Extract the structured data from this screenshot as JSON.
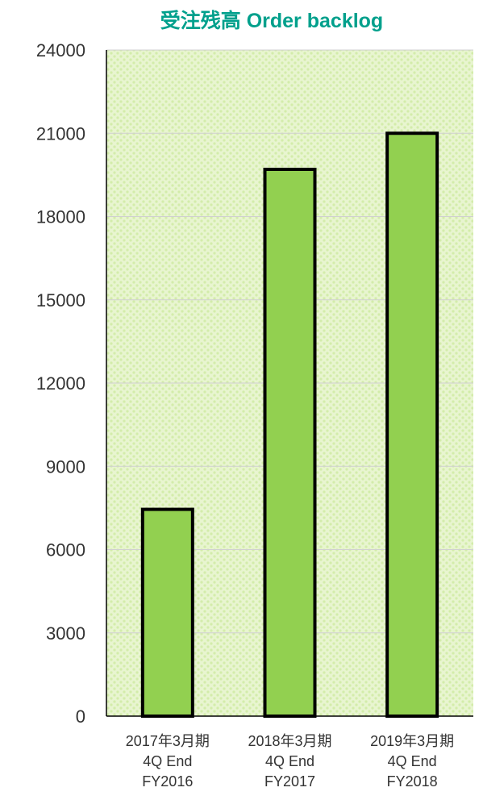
{
  "chart_data": {
    "type": "bar",
    "title": "受注残高  Order backlog",
    "categories": [
      [
        "2017年3月期",
        "4Q End",
        "FY2016"
      ],
      [
        "2018年3月期",
        "4Q End",
        "FY2017"
      ],
      [
        "2019年3月期",
        "4Q End",
        "FY2018"
      ]
    ],
    "values": [
      7450,
      19700,
      21000
    ],
    "ylim": [
      0,
      24000
    ],
    "yticks": [
      "0",
      "3000",
      "6000",
      "9000",
      "12000",
      "15000",
      "18000",
      "21000",
      "24000"
    ],
    "grid": true,
    "legend": "none",
    "colors": {
      "title": "#00a08c",
      "bar": "#92d050",
      "bar_outline": "#000000",
      "plot_background": "#e8f5d0",
      "plot_pattern": "#d3ecaa",
      "gridline": "#d0d0d0",
      "axis": "#000000"
    }
  }
}
